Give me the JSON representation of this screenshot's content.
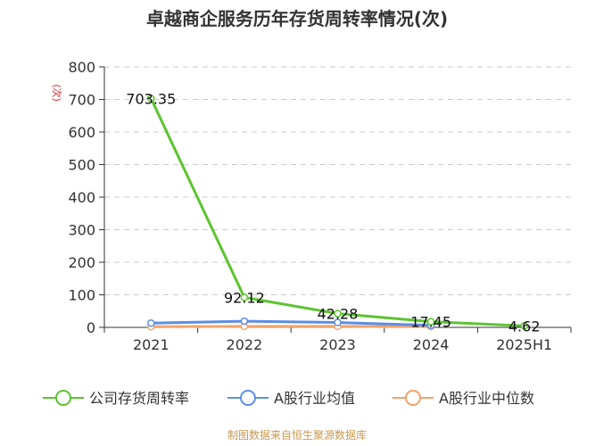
{
  "chart_data": {
    "type": "line",
    "title": "卓越商企服务历年存货周转率情况(次)",
    "unit_label": "(次)",
    "categories": [
      "2021",
      "2022",
      "2023",
      "2024",
      "2025H1"
    ],
    "ylim": [
      0,
      800
    ],
    "yticks": [
      0,
      100,
      200,
      300,
      400,
      500,
      600,
      700,
      800
    ],
    "grid": true,
    "legend_position": "bottom",
    "series": [
      {
        "name": "公司存货周转率",
        "color": "#5cc42f",
        "values": [
          703.35,
          92.12,
          42.28,
          17.45,
          4.62
        ],
        "data_labels": [
          "703.35",
          "92.12",
          "42.28",
          "17.45",
          "4.62"
        ]
      },
      {
        "name": "A股行业均值",
        "color": "#5b8ee6",
        "values": [
          13,
          19,
          15,
          6,
          null
        ]
      },
      {
        "name": "A股行业中位数",
        "color": "#f4a36a",
        "values": [
          2,
          3,
          3,
          2,
          null
        ]
      }
    ]
  },
  "source_note": "制图数据来自恒生聚源数据库"
}
